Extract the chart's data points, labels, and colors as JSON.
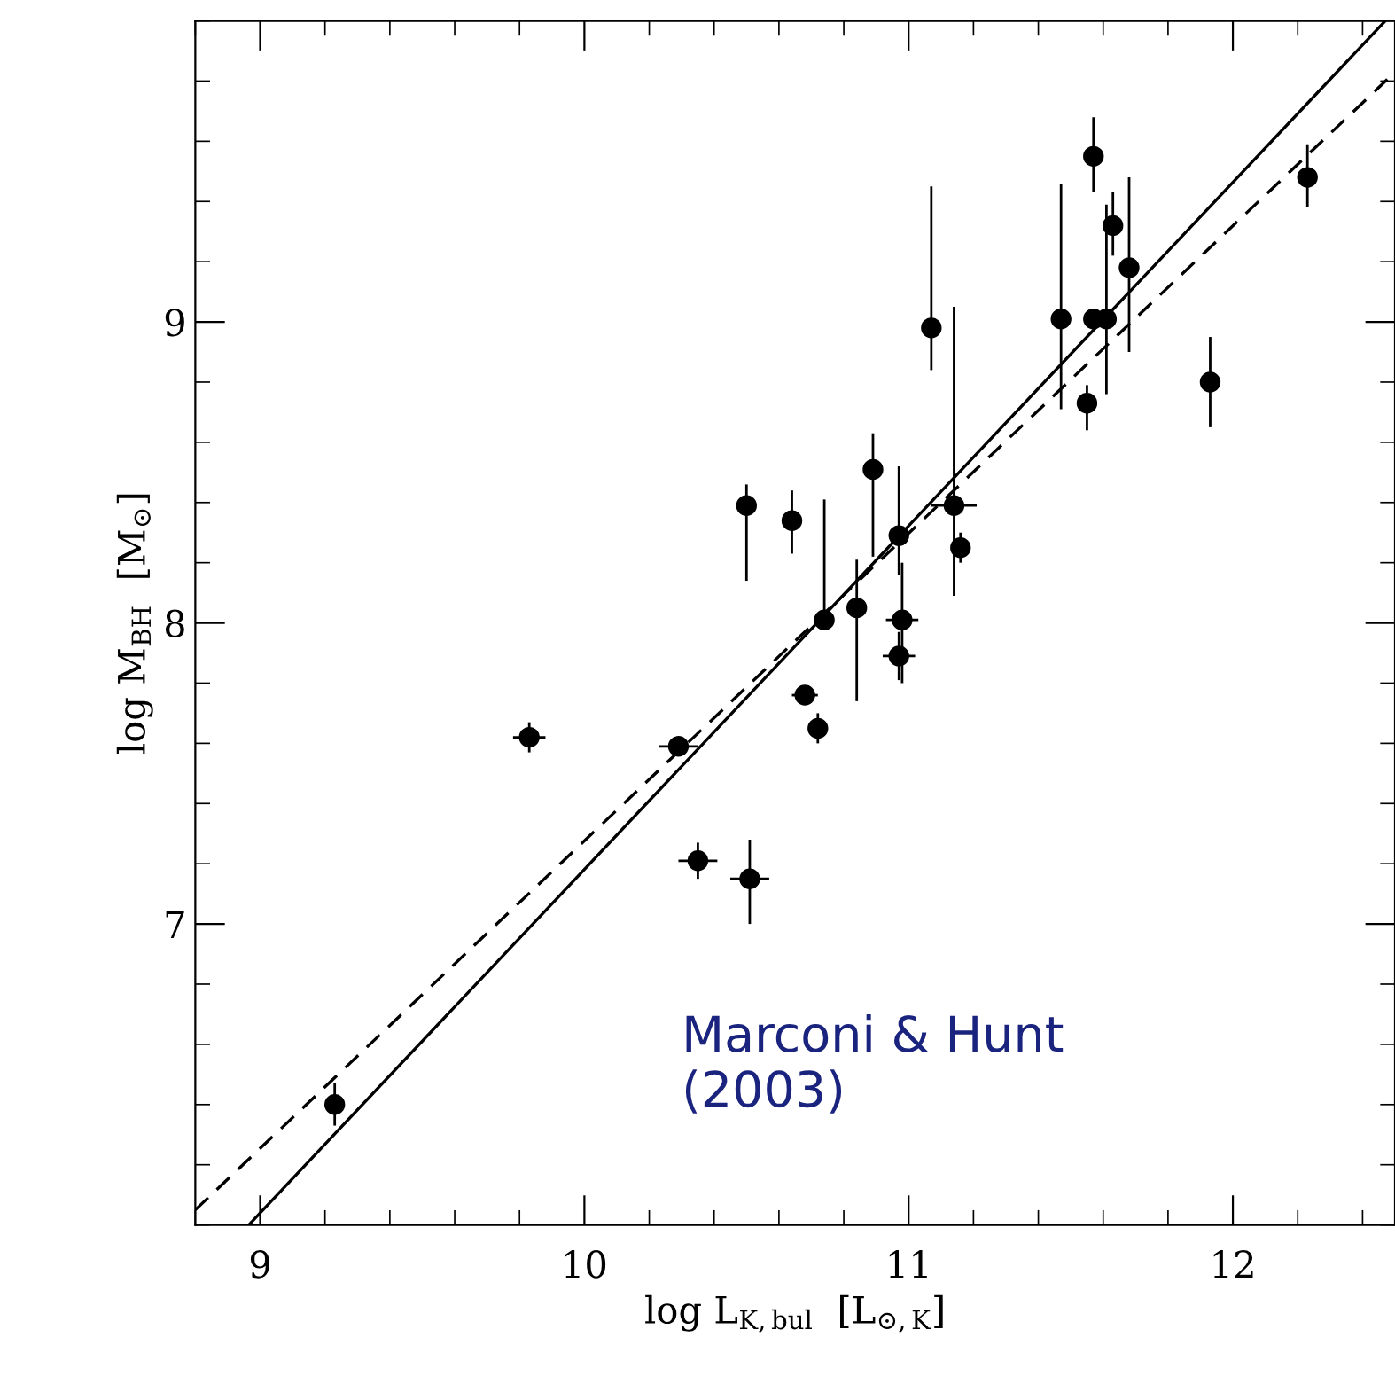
{
  "chart_data": {
    "type": "scatter",
    "xlabel": "log L$_{K,bul}$  [L$_{⊙,K}$]",
    "ylabel": "log M$_{BH}$  [M$_{⊙}$]",
    "annotations": [
      "Marconi & Hunt\n(2003)"
    ],
    "xlim": [
      8.8,
      12.5
    ],
    "xticks": [
      9,
      10,
      11,
      12
    ],
    "ylim": [
      6,
      10
    ],
    "yticks": [
      7,
      8,
      9
    ],
    "grid": false,
    "legend": false,
    "marker": "circle",
    "series": [
      {
        "color": "#000000",
        "x": [
          9.23,
          9.83,
          10.29,
          10.35,
          10.51,
          10.5,
          10.64,
          10.68,
          10.72,
          10.74,
          10.84,
          10.89,
          10.97,
          11.14,
          11.16,
          10.98,
          10.97,
          11.07,
          11.47,
          11.55,
          11.57,
          11.61,
          11.57,
          11.63,
          11.68,
          11.93,
          12.23
        ],
        "values": [
          6.4,
          7.62,
          7.59,
          7.21,
          7.15,
          8.39,
          8.34,
          7.76,
          7.65,
          8.01,
          8.05,
          8.51,
          8.29,
          8.39,
          8.25,
          8.01,
          7.89,
          8.98,
          9.01,
          8.73,
          9.01,
          9.01,
          9.55,
          9.32,
          9.18,
          8.8,
          9.48
        ],
        "errors": [
          0.07,
          0.05,
          null,
          0.06,
          [
            7.0,
            7.28
          ],
          [
            8.14,
            8.46
          ],
          [
            8.23,
            8.44
          ],
          null,
          0.05,
          [
            8.0,
            8.41
          ],
          [
            7.74,
            8.21
          ],
          [
            8.22,
            8.63
          ],
          [
            8.16,
            8.52
          ],
          [
            8.09,
            9.05
          ],
          0.05,
          [
            7.8,
            8.2
          ],
          0.08,
          [
            8.84,
            9.45
          ],
          [
            8.71,
            9.46
          ],
          [
            8.64,
            8.79
          ],
          null,
          [
            8.76,
            9.39
          ],
          [
            9.43,
            9.68
          ],
          [
            9.22,
            9.43
          ],
          [
            8.9,
            9.48
          ],
          [
            8.65,
            8.95
          ],
          [
            9.38,
            9.59
          ]
        ],
        "xerrors": [
          null,
          0.05,
          0.06,
          0.06,
          0.06,
          null,
          null,
          0.04,
          null,
          null,
          null,
          null,
          null,
          0.07,
          null,
          0.05,
          0.05,
          null,
          null,
          null,
          null,
          null,
          null,
          null,
          null,
          null,
          null
        ]
      },
      {
        "type": "line",
        "color": "#000000",
        "line_style": "solid",
        "marker": "none",
        "x": [
          8.965,
          12.47
        ],
        "values": [
          6.0,
          10.0
        ]
      },
      {
        "type": "line",
        "color": "#000000",
        "line_style": "dashed",
        "marker": "none",
        "x": [
          8.8,
          12.5
        ],
        "values": [
          6.05,
          9.83
        ]
      }
    ]
  }
}
